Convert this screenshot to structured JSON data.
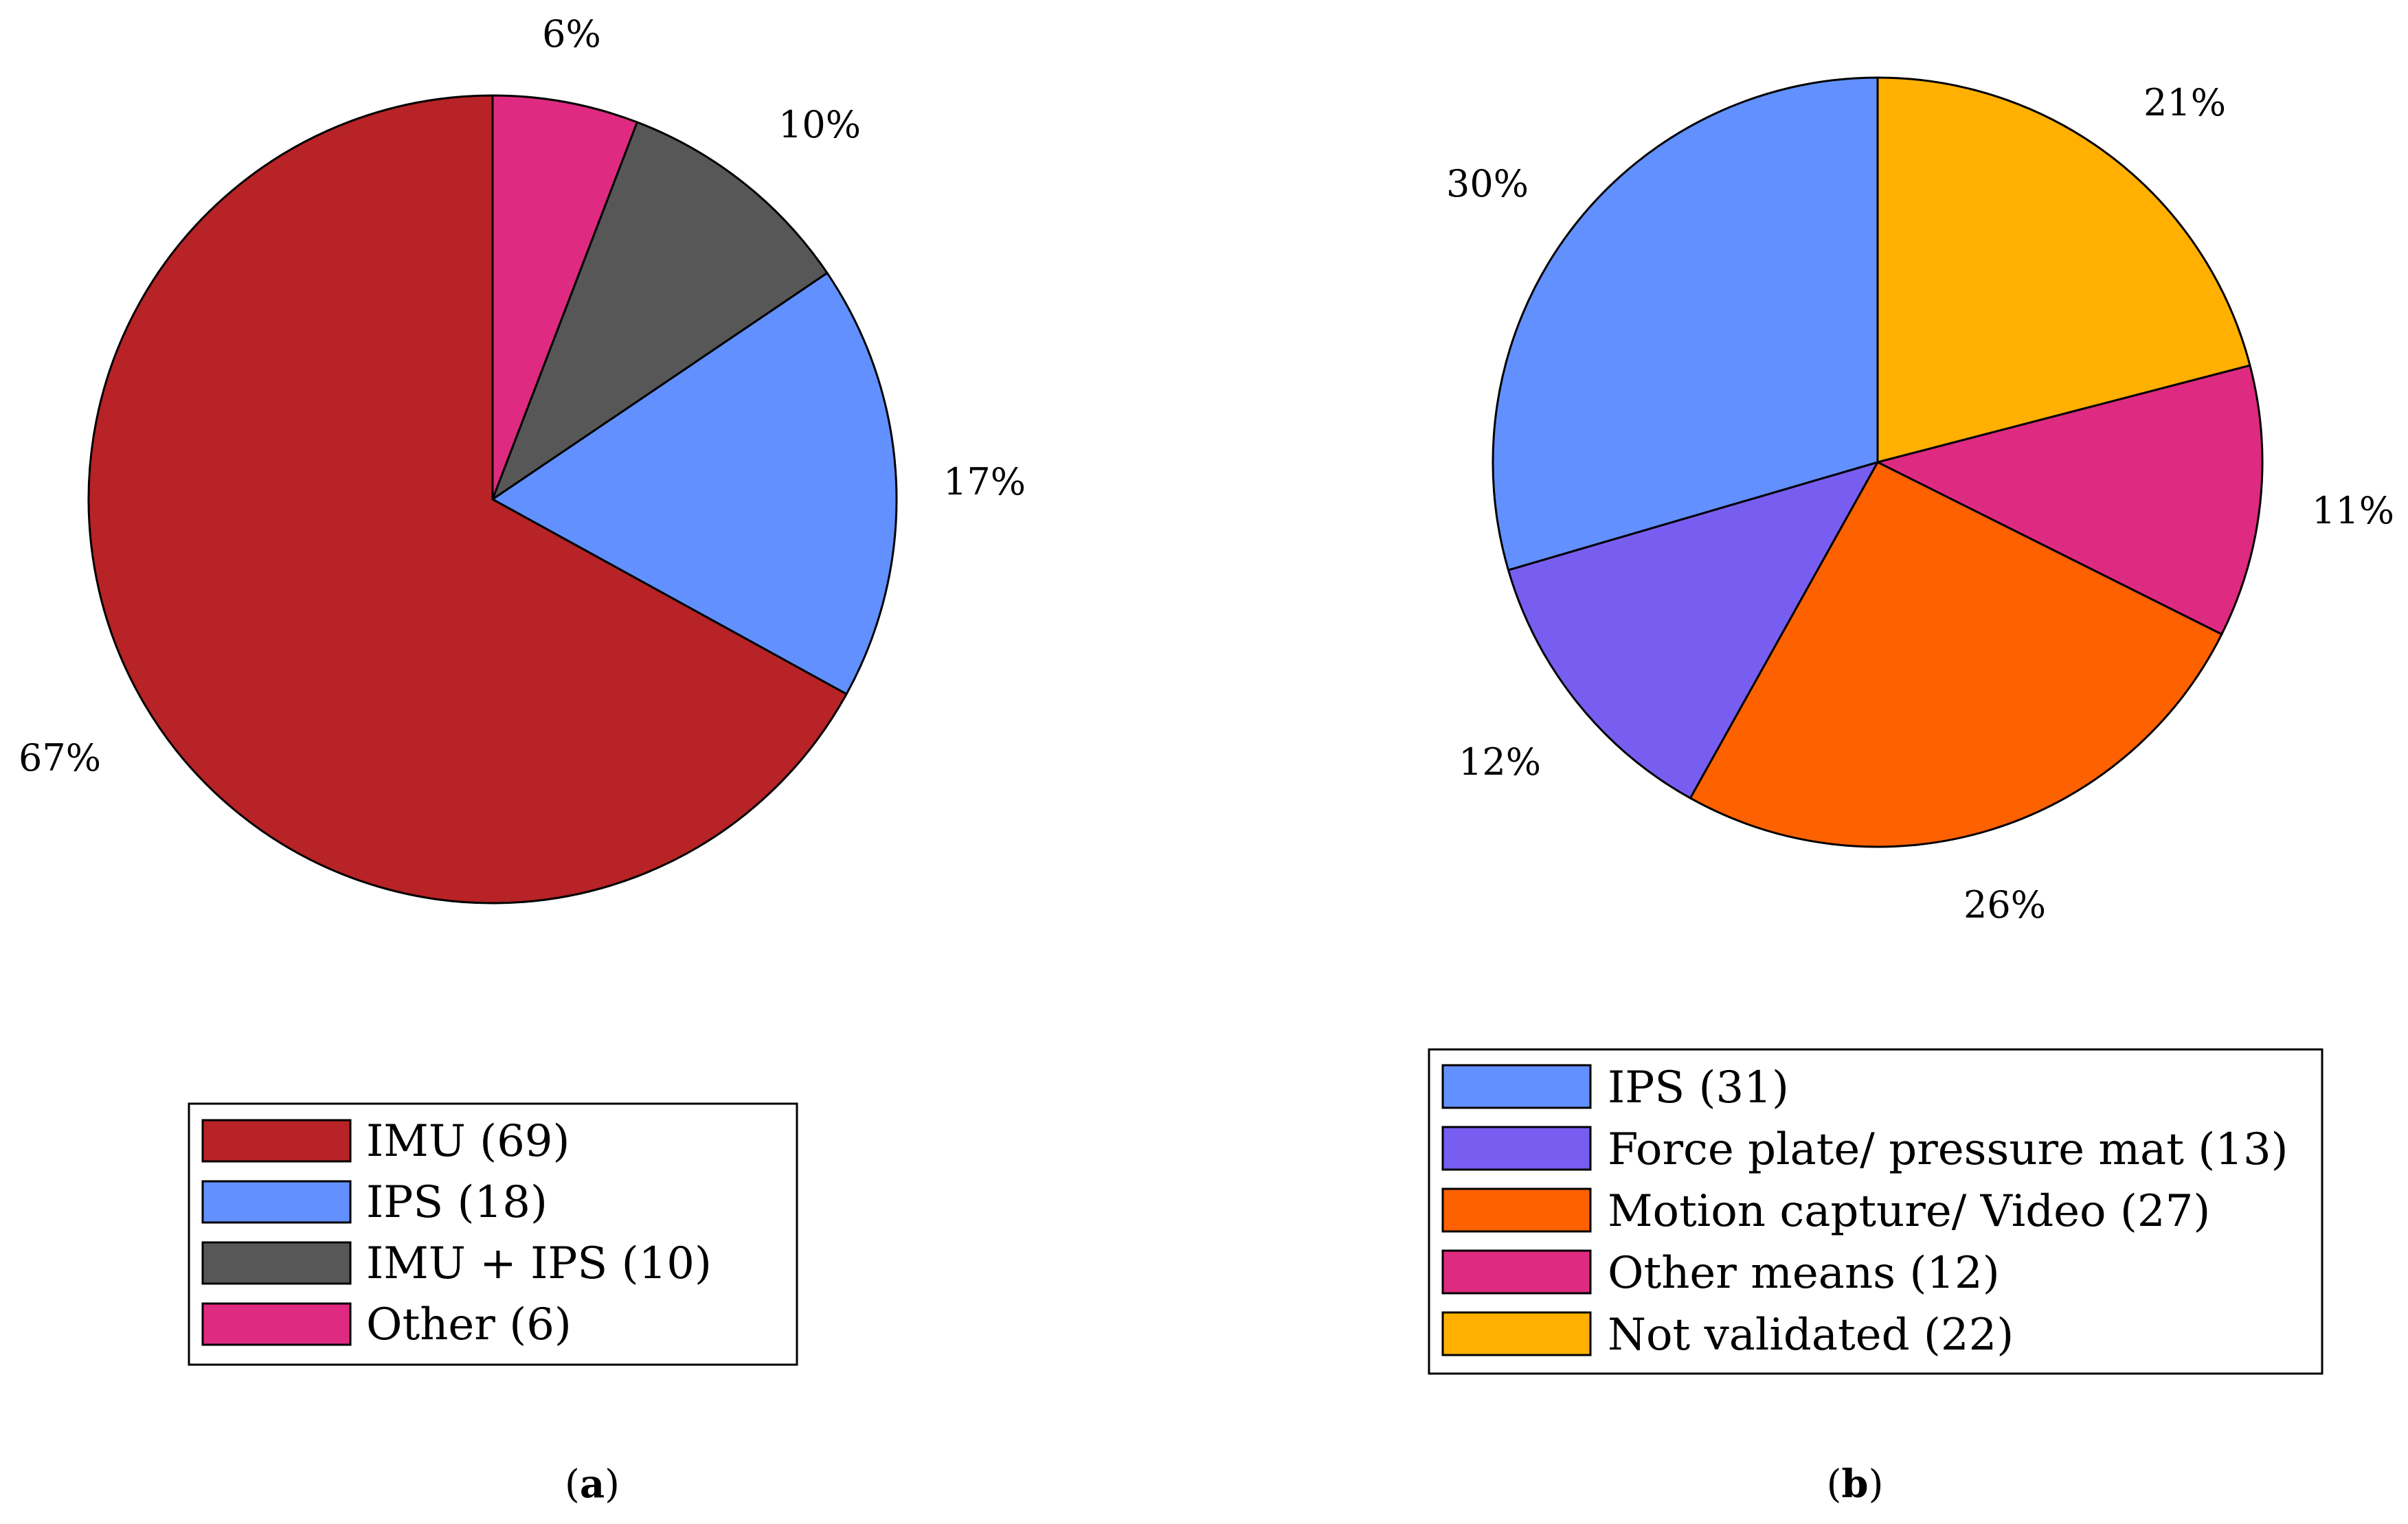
{
  "chart_data": [
    {
      "type": "pie",
      "id": "a",
      "caption": "a",
      "start": "top",
      "direction": "clockwise",
      "slices": [
        {
          "label": "Other",
          "legend": "Other (6)",
          "count": 6,
          "percent_label": "6%",
          "color": "#DE2A80"
        },
        {
          "label": "IMU + IPS",
          "legend": "IMU + IPS (10)",
          "count": 10,
          "percent_label": "10%",
          "color": "#575757"
        },
        {
          "label": "IPS",
          "legend": "IPS (18)",
          "count": 18,
          "percent_label": "17%",
          "color": "#6290FF"
        },
        {
          "label": "IMU",
          "legend": "IMU (69)",
          "count": 69,
          "percent_label": "67%",
          "color": "#B72326"
        }
      ],
      "legend_order": [
        "IMU",
        "IPS",
        "IMU + IPS",
        "Other"
      ]
    },
    {
      "type": "pie",
      "id": "b",
      "caption": "b",
      "start": "top",
      "direction": "clockwise",
      "slices": [
        {
          "label": "Not validated",
          "legend": "Not validated (22)",
          "count": 22,
          "percent_label": "21%",
          "color": "#FFB000"
        },
        {
          "label": "Other means",
          "legend": "Other means (12)",
          "count": 12,
          "percent_label": "11%",
          "color": "#DE2A80"
        },
        {
          "label": "Motion capture/ Video",
          "legend": "Motion capture/ Video (27)",
          "count": 27,
          "percent_label": "26%",
          "color": "#FE6100"
        },
        {
          "label": "Force plate/ pressure mat",
          "legend": "Force plate/ pressure mat (13)",
          "count": 13,
          "percent_label": "12%",
          "color": "#785EF0"
        },
        {
          "label": "IPS",
          "legend": "IPS (31)",
          "count": 31,
          "percent_label": "30%",
          "color": "#6290FF"
        }
      ],
      "legend_order": [
        "IPS",
        "Force plate/ pressure mat",
        "Motion capture/ Video",
        "Other means",
        "Not validated"
      ]
    }
  ]
}
